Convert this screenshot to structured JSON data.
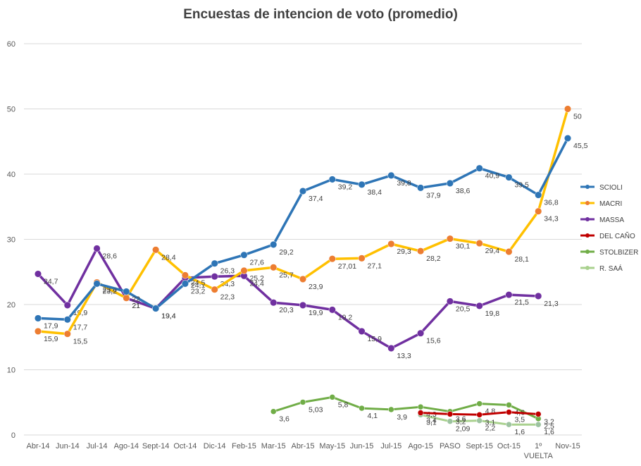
{
  "chart_data": {
    "type": "line",
    "title": "Encuestas de intencion de voto (promedio)",
    "xlabel": "",
    "ylabel": "",
    "ylim": [
      0,
      60
    ],
    "yticks": [
      0,
      10,
      20,
      30,
      40,
      50,
      60
    ],
    "grid": true,
    "legend_position": "right",
    "categories": [
      "Abr-14",
      "Jun-14",
      "Jul-14",
      "Ago-14",
      "Sept-14",
      "Oct-14",
      "Dic-14",
      "Feb-15",
      "Mar-15",
      "Abr-15",
      "May-15",
      "Jun-15",
      "Jul-15",
      "Ago-15",
      "PASO",
      "Sept-15",
      "Oct-15",
      "1º VUELTA",
      "Nov-15"
    ],
    "series": [
      {
        "name": "SCIOLI",
        "color": "#2E75B6",
        "values": [
          17.9,
          17.7,
          23.2,
          22,
          19.4,
          23.2,
          26.3,
          27.6,
          29.2,
          37.4,
          39.2,
          38.4,
          39.8,
          37.9,
          38.6,
          40.9,
          39.5,
          36.8,
          45.5
        ],
        "labels": [
          "17,9",
          "17,7",
          "23,2",
          "22",
          "19,4",
          "23,2",
          "26,3",
          "27,6",
          "29,2",
          "37,4",
          "39,2",
          "38,4",
          "39,8",
          "37,9",
          "38,6",
          "40,9",
          "39,5",
          "36,8",
          "45,5"
        ]
      },
      {
        "name": "MACRI",
        "color": "#FFC000",
        "values": [
          15.9,
          15.5,
          23.4,
          21,
          28.4,
          24.5,
          22.3,
          25.2,
          25.7,
          23.9,
          27.01,
          27.1,
          29.3,
          28.2,
          30.1,
          29.4,
          28.1,
          34.3,
          50
        ],
        "labels": [
          "15,9",
          "15,5",
          "23,4",
          "21",
          "28,4",
          "24,5",
          "22,3",
          "25,2",
          "25,7",
          "23,9",
          "27,01",
          "27,1",
          "29,3",
          "28,2",
          "30,1",
          "29,4",
          "28,1",
          "34,3",
          "50"
        ]
      },
      {
        "name": "MASSA",
        "color": "#7030A0",
        "values": [
          24.7,
          19.9,
          28.6,
          21,
          19.4,
          24.1,
          24.3,
          24.4,
          20.3,
          19.9,
          19.2,
          15.9,
          13.3,
          15.6,
          20.5,
          19.8,
          21.5,
          21.3,
          null
        ],
        "labels": [
          "24,7",
          "19,9",
          "28,6",
          "21",
          "19,4",
          "24,1",
          "24,3",
          "24,4",
          "20,3",
          "19,9",
          "19,2",
          "15,9",
          "13,3",
          "15,6",
          "20,5",
          "19,8",
          "21,5",
          "21,3",
          ""
        ]
      },
      {
        "name": "DEL CAÑO",
        "color": "#C00000",
        "values": [
          null,
          null,
          null,
          null,
          null,
          null,
          null,
          null,
          null,
          null,
          null,
          null,
          null,
          3.4,
          3.2,
          3.1,
          3.5,
          3.2,
          null
        ],
        "labels": [
          "",
          "",
          "",
          "",
          "",
          "",
          "",
          "",
          "",
          "",
          "",
          "",
          "",
          "3,4",
          "3,2",
          "3,1",
          "3,5",
          "3,2",
          ""
        ]
      },
      {
        "name": "STOLBIZER",
        "color": "#70AD47",
        "values": [
          null,
          null,
          null,
          null,
          null,
          null,
          null,
          null,
          3.6,
          5.03,
          5.8,
          4.1,
          3.9,
          4.3,
          3.6,
          4.8,
          4.6,
          2.5,
          null
        ],
        "labels": [
          "",
          "",
          "",
          "",
          "",
          "",
          "",
          "",
          "3,6",
          "5,03",
          "5,8",
          "4,1",
          "3,9",
          "4,3",
          "3,6",
          "4,8",
          "4,6",
          "2,5",
          ""
        ]
      },
      {
        "name": "R. SAÁ",
        "color": "#A9D18E",
        "values": [
          null,
          null,
          null,
          null,
          null,
          null,
          null,
          null,
          null,
          null,
          null,
          null,
          null,
          3.1,
          2.09,
          2.2,
          1.6,
          1.6,
          null
        ],
        "labels": [
          "",
          "",
          "",
          "",
          "",
          "",
          "",
          "",
          "",
          "",
          "",
          "",
          "",
          "3,1",
          "2,09",
          "2,2",
          "1,6",
          "1,6",
          ""
        ]
      }
    ]
  }
}
